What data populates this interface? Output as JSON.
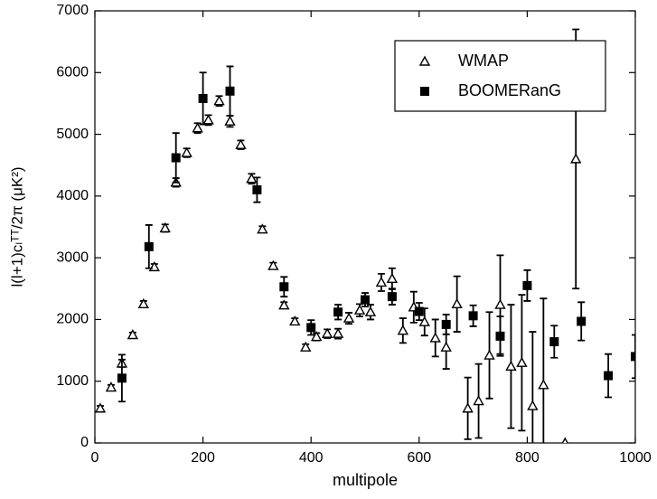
{
  "chart_data": {
    "type": "scatter",
    "x_label": "multipole",
    "y_label": "l(l+1)cₗᵀᵀ/2π (μK²)",
    "xlim": [
      0,
      1000
    ],
    "xticks": [
      0,
      200,
      400,
      600,
      800,
      1000
    ],
    "ylim": [
      0,
      7000
    ],
    "yticks": [
      0,
      1000,
      2000,
      3000,
      4000,
      5000,
      6000,
      7000
    ],
    "legend": "upper right",
    "series": [
      {
        "name": "WMAP",
        "color": "#000000",
        "marker": "open-triangle",
        "x": [
          10,
          30,
          50,
          70,
          90,
          110,
          130,
          150,
          170,
          190,
          210,
          230,
          250,
          270,
          290,
          310,
          330,
          350,
          370,
          390,
          410,
          430,
          450,
          470,
          490,
          510,
          530,
          550,
          570,
          590,
          610,
          630,
          650,
          670,
          690,
          710,
          730,
          750,
          770,
          790,
          810,
          830,
          870,
          890
        ],
        "values": [
          560,
          900,
          1290,
          1750,
          2250,
          2850,
          3480,
          4220,
          4700,
          5100,
          5230,
          5540,
          5210,
          4830,
          4280,
          3460,
          2870,
          2230,
          1970,
          1550,
          1720,
          1770,
          1770,
          2020,
          2150,
          2120,
          2600,
          2660,
          1820,
          2200,
          1960,
          1700,
          1550,
          2250,
          560,
          680,
          1420,
          2240,
          1240,
          1300,
          600,
          940,
          0,
          4600
        ],
        "errors": [
          40,
          40,
          60,
          40,
          50,
          50,
          60,
          70,
          70,
          80,
          80,
          80,
          90,
          70,
          80,
          50,
          50,
          50,
          50,
          50,
          60,
          70,
          80,
          90,
          100,
          120,
          140,
          170,
          200,
          250,
          220,
          300,
          350,
          450,
          500,
          600,
          700,
          800,
          1000,
          1100,
          1200,
          1400,
          0,
          2100
        ]
      },
      {
        "name": "BOOMERanG",
        "color": "#000000",
        "marker": "filled-square",
        "x": [
          50,
          100,
          150,
          200,
          250,
          300,
          350,
          400,
          450,
          500,
          550,
          600,
          650,
          700,
          750,
          800,
          850,
          900,
          950,
          1000
        ],
        "values": [
          1050,
          3180,
          4620,
          5580,
          5700,
          4100,
          2530,
          1870,
          2120,
          2320,
          2370,
          2130,
          1920,
          2060,
          1730,
          2550,
          1640,
          1970,
          1090,
          1400
        ],
        "errors": [
          380,
          350,
          400,
          420,
          400,
          200,
          160,
          120,
          120,
          110,
          130,
          140,
          160,
          170,
          320,
          250,
          260,
          310,
          350,
          350
        ]
      }
    ]
  }
}
